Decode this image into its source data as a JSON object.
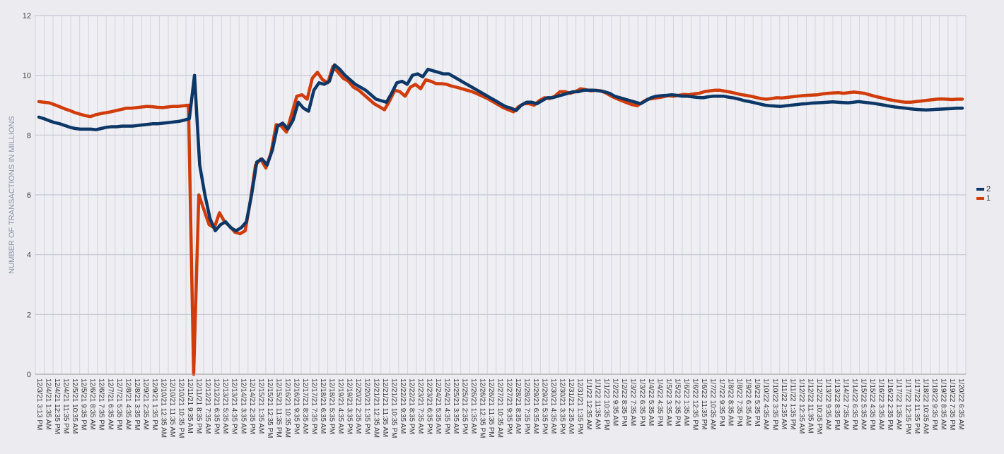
{
  "chart_data": {
    "type": "line",
    "xlabel": "",
    "ylabel": "NUMBER OF TRANSACTIONS IN MILLIONS",
    "ylim": [
      0,
      12
    ],
    "yticks": [
      "0",
      "2",
      "4",
      "6",
      "8",
      "10",
      "12"
    ],
    "grid": true,
    "legend_position": "right",
    "x_tick_labels": [
      "12/3/21 3:13 PM",
      "12/4/21 1:35 AM",
      "12/4/21 12:35 PM",
      "12/4/21 11:35 PM",
      "12/5/21 10:35 AM",
      "12/5/21 9:35 PM",
      "12/6/21 8:35 AM",
      "12/6/21 7:35 PM",
      "12/7/21 6:35 AM",
      "12/7/21 5:35 PM",
      "12/8/21 4:35 AM",
      "12/8/21 3:35 PM",
      "12/9/21 2:35 AM",
      "12/9/21 1:35 PM",
      "12/10/21 12:35 AM",
      "12/10/21 11:35 AM",
      "12/10/21 10:35 PM",
      "12/11/21 9:35 AM",
      "12/11/21 8:35 PM",
      "12/12/21 7:35 AM",
      "12/12/21 6:35 PM",
      "12/13/21 5:35 AM",
      "12/13/21 4:35 PM",
      "12/14/21 3:35 AM",
      "12/14/21 2:35 PM",
      "12/15/21 1:35 AM",
      "12/15/21 12:35 PM",
      "12/15/21 11:35 PM",
      "12/16/21 10:35 AM",
      "12/16/21 9:35 PM",
      "12/17/21 8:35 AM",
      "12/17/21 7:35 PM",
      "12/18/21 6:35 AM",
      "12/18/21 5:35 PM",
      "12/19/21 4:35 AM",
      "12/19/21 3:35 PM",
      "12/20/21 2:35 AM",
      "12/20/21 1:35 PM",
      "12/21/21 12:35 AM",
      "12/21/21 11:35 AM",
      "12/21/21 10:35 PM",
      "12/22/21 9:35 AM",
      "12/22/21 8:35 PM",
      "12/23/21 7:35 AM",
      "12/23/21 6:35 PM",
      "12/24/21 5:35 AM",
      "12/24/21 4:35 PM",
      "12/25/21 3:35 AM",
      "12/25/21 2:35 PM",
      "12/26/21 1:35 AM",
      "12/26/21 12:35 PM",
      "12/26/21 11:35 PM",
      "12/27/21 10:35 AM",
      "12/27/21 9:35 PM",
      "12/28/21 8:35 AM",
      "12/28/21 7:35 PM",
      "12/29/21 6:35 AM",
      "12/29/21 5:35 PM",
      "12/30/21 4:35 AM",
      "12/30/21 3:35 PM",
      "12/31/21 2:35 AM",
      "12/31/21 1:35 PM",
      "1/1/22 12:35 AM",
      "1/1/22 11:35 AM",
      "1/1/22 10:35 PM",
      "1/2/22 9:35 AM",
      "1/2/22 8:35 PM",
      "1/3/22 7:35 AM",
      "1/3/22 6:35 PM",
      "1/4/22 5:35 AM",
      "1/4/22 4:35 PM",
      "1/5/22 3:35 AM",
      "1/5/22 2:35 PM",
      "1/6/22 1:35 AM",
      "1/6/22 12:35 PM",
      "1/6/22 11:35 PM",
      "1/7/22 10:35 AM",
      "1/7/22 9:35 PM",
      "1/8/22 8:35 AM",
      "1/8/22 7:35 PM",
      "1/9/22 6:35 AM",
      "1/9/22 5:35 PM",
      "1/10/22 4:35 AM",
      "1/10/22 3:35 PM",
      "1/11/22 2:35 AM",
      "1/11/22 1:35 PM",
      "1/12/22 12:35 AM",
      "1/12/22 11:35 AM",
      "1/12/22 10:35 PM",
      "1/13/22 9:35 AM",
      "1/13/22 8:35 PM",
      "1/14/22 7:35 AM",
      "1/14/22 6:35 PM",
      "1/15/22 5:35 AM",
      "1/15/22 4:35 PM",
      "1/16/22 3:35 AM",
      "1/16/22 2:35 PM",
      "1/17/22 1:35 AM",
      "1/17/22 12:35 PM",
      "1/17/22 11:35 PM",
      "1/18/22 10:35 AM",
      "1/18/22 9:35 PM",
      "1/19/22 8:35 AM",
      "1/19/22 7:35 PM",
      "1/20/22 6:35 AM"
    ],
    "series": [
      {
        "name": "2",
        "color": "#0d3766",
        "values": [
          8.6,
          8.55,
          8.48,
          8.42,
          8.38,
          8.32,
          8.26,
          8.22,
          8.2,
          8.2,
          8.2,
          8.18,
          8.22,
          8.26,
          8.28,
          8.28,
          8.3,
          8.3,
          8.3,
          8.32,
          8.34,
          8.36,
          8.38,
          8.38,
          8.4,
          8.42,
          8.44,
          8.46,
          8.5,
          8.55,
          10.0,
          7.0,
          6.0,
          5.2,
          4.8,
          5.0,
          5.1,
          4.9,
          4.8,
          4.9,
          5.1,
          6.0,
          7.1,
          7.2,
          7.0,
          7.5,
          8.3,
          8.4,
          8.2,
          8.5,
          9.1,
          8.9,
          8.8,
          9.5,
          9.75,
          9.7,
          9.8,
          10.35,
          10.2,
          10.0,
          9.85,
          9.7,
          9.6,
          9.5,
          9.35,
          9.2,
          9.15,
          9.1,
          9.4,
          9.75,
          9.8,
          9.7,
          10.0,
          10.05,
          9.95,
          10.2,
          10.15,
          10.1,
          10.05,
          10.05,
          9.95,
          9.85,
          9.75,
          9.65,
          9.55,
          9.45,
          9.35,
          9.25,
          9.15,
          9.05,
          8.95,
          8.9,
          8.82,
          9.0,
          9.1,
          9.1,
          9.05,
          9.15,
          9.25,
          9.25,
          9.3,
          9.35,
          9.4,
          9.45,
          9.45,
          9.5,
          9.5,
          9.5,
          9.48,
          9.45,
          9.4,
          9.3,
          9.25,
          9.2,
          9.15,
          9.1,
          9.05,
          9.15,
          9.25,
          9.3,
          9.32,
          9.33,
          9.35,
          9.33,
          9.3,
          9.3,
          9.28,
          9.26,
          9.25,
          9.28,
          9.3,
          9.3,
          9.3,
          9.27,
          9.24,
          9.2,
          9.15,
          9.12,
          9.08,
          9.04,
          9.0,
          8.98,
          8.97,
          8.96,
          8.98,
          9.0,
          9.02,
          9.04,
          9.05,
          9.07,
          9.08,
          9.09,
          9.1,
          9.11,
          9.1,
          9.09,
          9.08,
          9.1,
          9.12,
          9.1,
          9.08,
          9.06,
          9.03,
          9.0,
          8.97,
          8.94,
          8.92,
          8.9,
          8.88,
          8.86,
          8.85,
          8.84,
          8.85,
          8.86,
          8.87,
          8.88,
          8.89,
          8.9,
          8.9
        ]
      },
      {
        "name": "1",
        "color": "#d13c0b",
        "values": [
          9.12,
          9.1,
          9.08,
          9.02,
          8.95,
          8.88,
          8.82,
          8.75,
          8.7,
          8.65,
          8.62,
          8.68,
          8.72,
          8.75,
          8.78,
          8.82,
          8.86,
          8.9,
          8.9,
          8.92,
          8.94,
          8.96,
          8.95,
          8.93,
          8.92,
          8.94,
          8.96,
          8.96,
          8.98,
          9.0,
          0.0,
          6.0,
          5.5,
          5.0,
          4.9,
          5.4,
          5.1,
          4.95,
          4.75,
          4.7,
          4.8,
          5.8,
          7.0,
          7.2,
          6.9,
          7.4,
          8.35,
          8.3,
          8.1,
          8.7,
          9.3,
          9.35,
          9.2,
          9.9,
          10.1,
          9.85,
          9.75,
          10.3,
          10.1,
          9.9,
          9.8,
          9.6,
          9.5,
          9.35,
          9.2,
          9.05,
          8.95,
          8.85,
          9.15,
          9.5,
          9.45,
          9.3,
          9.6,
          9.7,
          9.55,
          9.85,
          9.8,
          9.72,
          9.72,
          9.7,
          9.64,
          9.6,
          9.55,
          9.5,
          9.45,
          9.38,
          9.3,
          9.22,
          9.12,
          9.02,
          8.92,
          8.85,
          8.78,
          8.95,
          9.05,
          9.05,
          9.0,
          9.15,
          9.25,
          9.22,
          9.3,
          9.45,
          9.45,
          9.4,
          9.45,
          9.55,
          9.52,
          9.48,
          9.5,
          9.48,
          9.4,
          9.3,
          9.22,
          9.15,
          9.08,
          9.02,
          8.98,
          9.1,
          9.2,
          9.22,
          9.25,
          9.28,
          9.32,
          9.3,
          9.33,
          9.36,
          9.35,
          9.38,
          9.4,
          9.45,
          9.48,
          9.5,
          9.5,
          9.47,
          9.44,
          9.4,
          9.36,
          9.33,
          9.3,
          9.26,
          9.22,
          9.2,
          9.22,
          9.25,
          9.24,
          9.26,
          9.28,
          9.3,
          9.32,
          9.33,
          9.34,
          9.35,
          9.38,
          9.4,
          9.41,
          9.42,
          9.4,
          9.42,
          9.44,
          9.42,
          9.4,
          9.35,
          9.3,
          9.26,
          9.22,
          9.18,
          9.15,
          9.12,
          9.1,
          9.1,
          9.12,
          9.14,
          9.16,
          9.18,
          9.2,
          9.21,
          9.2,
          9.19,
          9.2,
          9.2
        ]
      }
    ]
  }
}
